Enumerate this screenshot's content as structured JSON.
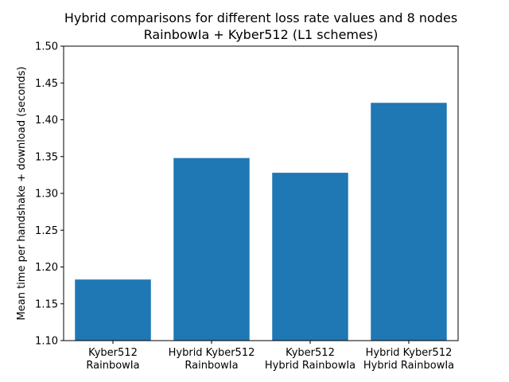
{
  "chart_data": {
    "type": "bar",
    "title": "Hybrid comparisons for different loss rate values and 8 nodes",
    "subtitle": "RainbowIa + Kyber512 (L1 schemes)",
    "xlabel": "",
    "ylabel": "Mean time per handshake + download (seconds)",
    "ylim": [
      1.1,
      1.5
    ],
    "yticks": [
      1.1,
      1.15,
      1.2,
      1.25,
      1.3,
      1.35,
      1.4,
      1.45,
      1.5
    ],
    "ytick_labels": [
      "1.10",
      "1.15",
      "1.20",
      "1.25",
      "1.30",
      "1.35",
      "1.40",
      "1.45",
      "1.50"
    ],
    "categories": [
      [
        "Kyber512",
        "RainbowIa"
      ],
      [
        "Hybrid Kyber512",
        "RainbowIa"
      ],
      [
        "Kyber512",
        "Hybrid RainbowIa"
      ],
      [
        "Hybrid Kyber512",
        "Hybrid RainbowIa"
      ]
    ],
    "values": [
      1.183,
      1.348,
      1.328,
      1.423
    ],
    "bar_color": "#1f77b4",
    "grid": false,
    "legend": "none"
  }
}
